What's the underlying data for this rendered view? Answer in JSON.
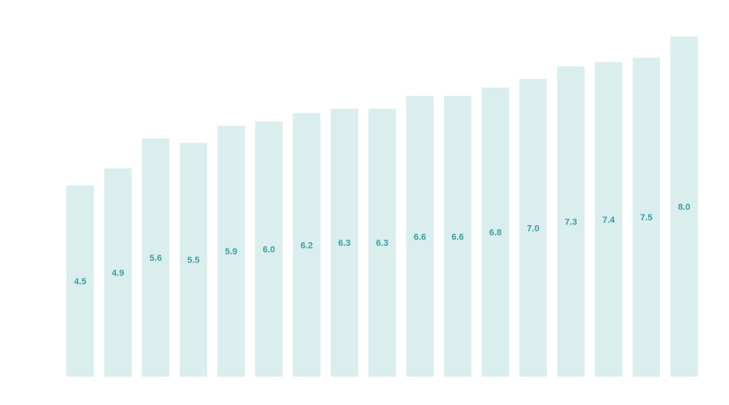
{
  "chart_data": {
    "type": "bar",
    "categories": [],
    "values": [
      4.5,
      4.9,
      5.6,
      5.5,
      5.9,
      6.0,
      6.2,
      6.3,
      6.3,
      6.6,
      6.6,
      6.8,
      7.0,
      7.3,
      7.4,
      7.5,
      8.0
    ],
    "labels": [
      "4.5",
      "4.9",
      "5.6",
      "5.5",
      "5.9",
      "6.0",
      "6.2",
      "6.3",
      "6.3",
      "6.6",
      "6.6",
      "6.8",
      "7.0",
      "7.3",
      "7.4",
      "7.5",
      "8.0"
    ],
    "title": "",
    "xlabel": "",
    "ylabel": "",
    "ylim": [
      0,
      8.0
    ],
    "grid": false,
    "legend": "none",
    "label_position": "middle"
  },
  "colors": {
    "bar": "#daeeee",
    "label": "#3a9ea3",
    "background": "#ffffff"
  }
}
